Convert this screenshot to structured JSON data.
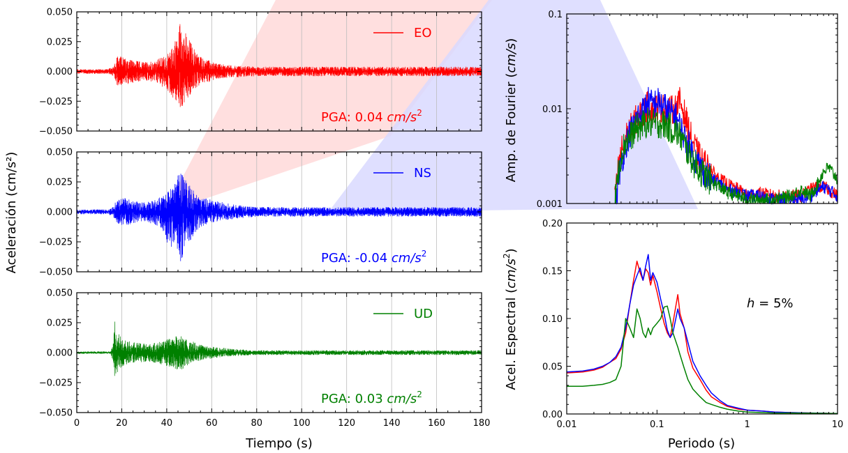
{
  "colors": {
    "EO": "#ff0000",
    "NS": "#0000ff",
    "UD": "#008000",
    "axis": "#000000",
    "grid": "#bdbdbd",
    "watermark_red": "#ffd6d6",
    "watermark_blue": "#d6d6ff"
  },
  "left": {
    "ylabel": "Aceleración (cm/s²)",
    "xlabel": "Tiempo (s)",
    "xticks": [
      "0",
      "20",
      "40",
      "60",
      "80",
      "100",
      "120",
      "140",
      "160",
      "180"
    ],
    "yticks": [
      "0.050",
      "0.025",
      "0.000",
      "−0.025",
      "−0.050"
    ],
    "panels": [
      {
        "legend": "EO",
        "pga_prefix": "PGA: 0.04 ",
        "pga_unit": "cm/s",
        "pga_exp": "2"
      },
      {
        "legend": "NS",
        "pga_prefix": "PGA: -0.04 ",
        "pga_unit": "cm/s",
        "pga_exp": "2"
      },
      {
        "legend": "UD",
        "pga_prefix": "PGA: 0.03 ",
        "pga_unit": "cm/s",
        "pga_exp": "2"
      }
    ]
  },
  "fourier": {
    "ylabel_prefix": "Amp. de Fourier (",
    "ylabel_unit": "cm/s",
    "ylabel_suffix": ")",
    "yticks": [
      "0.1",
      "0.01",
      "0.001"
    ]
  },
  "spectrum": {
    "ylabel_prefix": "Acel. Espectral (",
    "ylabel_unit": "cm/s",
    "ylabel_exp": "2",
    "ylabel_suffix": ")",
    "xlabel": "Periodo (s)",
    "yticks": [
      "0.20",
      "0.15",
      "0.10",
      "0.05",
      "0.00"
    ],
    "xticks": [
      "0.01",
      "0.1",
      "1",
      "10"
    ],
    "damping_h": "h",
    "damping_rest": " = 5%"
  },
  "chart_data": [
    {
      "type": "line",
      "title": "",
      "xlabel": "Tiempo (s)",
      "ylabel": "Aceleración (cm/s²)",
      "xlim": [
        0,
        180
      ],
      "ylim": [
        -0.05,
        0.05
      ],
      "grid": "vertical",
      "series": [
        {
          "name": "EO",
          "color": "#ff0000",
          "pga": 0.04,
          "envelope": {
            "t": [
              0,
              14,
              16,
              18,
              22,
              26,
              30,
              34,
              38,
              40,
              42,
              44,
              46,
              48,
              50,
              52,
              55,
              60,
              65,
              70,
              80,
              100,
              130,
              160,
              180
            ],
            "upper": [
              0.002,
              0.002,
              0.004,
              0.013,
              0.012,
              0.009,
              0.008,
              0.009,
              0.012,
              0.014,
              0.018,
              0.03,
              0.042,
              0.034,
              0.027,
              0.02,
              0.013,
              0.008,
              0.006,
              0.005,
              0.004,
              0.004,
              0.004,
              0.004,
              0.004
            ],
            "lower": [
              -0.002,
              -0.002,
              -0.004,
              -0.012,
              -0.011,
              -0.009,
              -0.008,
              -0.009,
              -0.013,
              -0.016,
              -0.02,
              -0.026,
              -0.033,
              -0.028,
              -0.022,
              -0.016,
              -0.011,
              -0.008,
              -0.006,
              -0.005,
              -0.004,
              -0.004,
              -0.004,
              -0.004,
              -0.004
            ]
          }
        },
        {
          "name": "NS",
          "color": "#0000ff",
          "pga": -0.04,
          "envelope": {
            "t": [
              0,
              14,
              16,
              18,
              22,
              26,
              30,
              34,
              38,
              40,
              42,
              44,
              46,
              48,
              50,
              52,
              55,
              60,
              65,
              70,
              80,
              100,
              130,
              160,
              180
            ],
            "upper": [
              0.002,
              0.002,
              0.004,
              0.011,
              0.012,
              0.009,
              0.008,
              0.01,
              0.013,
              0.016,
              0.02,
              0.028,
              0.035,
              0.03,
              0.024,
              0.018,
              0.013,
              0.01,
              0.008,
              0.006,
              0.004,
              0.004,
              0.004,
              0.004,
              0.004
            ],
            "lower": [
              -0.002,
              -0.002,
              -0.004,
              -0.01,
              -0.012,
              -0.009,
              -0.008,
              -0.01,
              -0.014,
              -0.025,
              -0.03,
              -0.034,
              -0.042,
              -0.033,
              -0.026,
              -0.019,
              -0.013,
              -0.009,
              -0.007,
              -0.006,
              -0.004,
              -0.004,
              -0.004,
              -0.004,
              -0.004
            ]
          }
        },
        {
          "name": "UD",
          "color": "#008000",
          "pga": 0.03,
          "envelope": {
            "t": [
              0,
              15,
              16,
              17,
              18,
              20,
              24,
              28,
              34,
              38,
              42,
              46,
              48,
              52,
              56,
              60,
              65,
              70,
              80,
              100,
              130,
              160,
              180
            ],
            "upper": [
              0.001,
              0.001,
              0.006,
              0.028,
              0.018,
              0.012,
              0.009,
              0.008,
              0.008,
              0.01,
              0.012,
              0.015,
              0.012,
              0.009,
              0.006,
              0.005,
              0.004,
              0.003,
              0.002,
              0.002,
              0.002,
              0.002,
              0.002
            ],
            "lower": [
              -0.001,
              -0.001,
              -0.006,
              -0.025,
              -0.017,
              -0.012,
              -0.009,
              -0.008,
              -0.008,
              -0.01,
              -0.013,
              -0.016,
              -0.012,
              -0.008,
              -0.006,
              -0.005,
              -0.004,
              -0.003,
              -0.002,
              -0.002,
              -0.002,
              -0.002,
              -0.002
            ]
          }
        }
      ]
    },
    {
      "type": "line",
      "title": "",
      "xlabel": "Periodo (s)",
      "ylabel": "Amp. de Fourier (cm/s)",
      "xscale": "log",
      "yscale": "log",
      "xlim": [
        0.01,
        10
      ],
      "ylim": [
        0.001,
        0.1
      ],
      "series": [
        {
          "name": "EO",
          "color": "#ff0000",
          "x": [
            0.034,
            0.037,
            0.04,
            0.045,
            0.05,
            0.06,
            0.07,
            0.08,
            0.09,
            0.1,
            0.12,
            0.14,
            0.16,
            0.18,
            0.2,
            0.23,
            0.26,
            0.3,
            0.35,
            0.4,
            0.5,
            0.6,
            0.8,
            1,
            1.3,
            2,
            3,
            4,
            5,
            6,
            7,
            8,
            10
          ],
          "y": [
            0.001,
            0.0022,
            0.0035,
            0.005,
            0.006,
            0.008,
            0.009,
            0.011,
            0.0095,
            0.0105,
            0.01,
            0.0095,
            0.01,
            0.012,
            0.009,
            0.0055,
            0.004,
            0.003,
            0.0025,
            0.0022,
            0.0018,
            0.0016,
            0.0014,
            0.0012,
            0.0013,
            0.0012,
            0.0012,
            0.0012,
            0.0014,
            0.0015,
            0.0015,
            0.0014,
            0.0012
          ]
        },
        {
          "name": "NS",
          "color": "#0000ff",
          "x": [
            0.035,
            0.038,
            0.042,
            0.046,
            0.05,
            0.06,
            0.07,
            0.08,
            0.09,
            0.1,
            0.12,
            0.14,
            0.16,
            0.18,
            0.2,
            0.23,
            0.26,
            0.3,
            0.35,
            0.4,
            0.5,
            0.6,
            0.8,
            1,
            1.3,
            2,
            3,
            4,
            5,
            6,
            7,
            8,
            10
          ],
          "y": [
            0.001,
            0.002,
            0.0032,
            0.0045,
            0.0055,
            0.008,
            0.0095,
            0.012,
            0.011,
            0.012,
            0.0105,
            0.009,
            0.0085,
            0.0065,
            0.005,
            0.004,
            0.003,
            0.0025,
            0.002,
            0.0018,
            0.0016,
            0.0014,
            0.0013,
            0.0012,
            0.0012,
            0.0011,
            0.0011,
            0.0011,
            0.0012,
            0.0014,
            0.0015,
            0.0014,
            0.0012
          ]
        },
        {
          "name": "UD",
          "color": "#008000",
          "x": [
            0.034,
            0.037,
            0.04,
            0.045,
            0.05,
            0.06,
            0.07,
            0.08,
            0.09,
            0.1,
            0.12,
            0.14,
            0.16,
            0.18,
            0.2,
            0.23,
            0.26,
            0.3,
            0.35,
            0.4,
            0.5,
            0.6,
            0.8,
            1,
            1.3,
            2,
            3,
            4,
            5,
            6,
            7,
            8,
            10
          ],
          "y": [
            0.001,
            0.002,
            0.0033,
            0.0045,
            0.005,
            0.0062,
            0.0068,
            0.0072,
            0.0068,
            0.007,
            0.0068,
            0.0062,
            0.0058,
            0.0052,
            0.0042,
            0.0032,
            0.0026,
            0.0022,
            0.0019,
            0.0017,
            0.0015,
            0.0013,
            0.0012,
            0.0011,
            0.0011,
            0.0011,
            0.0012,
            0.0014,
            0.0012,
            0.0016,
            0.0022,
            0.0024,
            0.0018
          ]
        }
      ]
    },
    {
      "type": "line",
      "title": "",
      "xlabel": "Periodo (s)",
      "ylabel": "Acel. Espectral (cm/s²)",
      "xscale": "log",
      "xlim": [
        0.01,
        10
      ],
      "ylim": [
        0,
        0.2
      ],
      "annotation": "h = 5%",
      "series": [
        {
          "name": "EO",
          "color": "#ff0000",
          "x": [
            0.01,
            0.015,
            0.02,
            0.025,
            0.03,
            0.035,
            0.04,
            0.045,
            0.05,
            0.055,
            0.06,
            0.065,
            0.07,
            0.075,
            0.08,
            0.085,
            0.09,
            0.1,
            0.11,
            0.12,
            0.13,
            0.14,
            0.15,
            0.17,
            0.18,
            0.2,
            0.22,
            0.25,
            0.3,
            0.35,
            0.4,
            0.5,
            0.6,
            0.8,
            1,
            1.5,
            2,
            3,
            5,
            10
          ],
          "y": [
            0.043,
            0.044,
            0.046,
            0.049,
            0.054,
            0.058,
            0.068,
            0.085,
            0.115,
            0.14,
            0.16,
            0.148,
            0.14,
            0.152,
            0.148,
            0.135,
            0.145,
            0.128,
            0.11,
            0.095,
            0.085,
            0.08,
            0.095,
            0.125,
            0.105,
            0.09,
            0.065,
            0.048,
            0.036,
            0.025,
            0.018,
            0.012,
            0.008,
            0.005,
            0.004,
            0.003,
            0.002,
            0.0015,
            0.001,
            0.0005
          ]
        },
        {
          "name": "NS",
          "color": "#0000ff",
          "x": [
            0.01,
            0.015,
            0.02,
            0.025,
            0.03,
            0.035,
            0.04,
            0.045,
            0.05,
            0.055,
            0.06,
            0.065,
            0.07,
            0.075,
            0.08,
            0.085,
            0.09,
            0.1,
            0.11,
            0.12,
            0.13,
            0.14,
            0.15,
            0.17,
            0.18,
            0.2,
            0.22,
            0.25,
            0.3,
            0.35,
            0.4,
            0.5,
            0.6,
            0.8,
            1,
            1.5,
            2,
            3,
            5,
            10
          ],
          "y": [
            0.044,
            0.045,
            0.047,
            0.05,
            0.054,
            0.06,
            0.07,
            0.09,
            0.115,
            0.135,
            0.145,
            0.153,
            0.14,
            0.155,
            0.167,
            0.14,
            0.148,
            0.138,
            0.12,
            0.105,
            0.088,
            0.08,
            0.085,
            0.11,
            0.1,
            0.09,
            0.075,
            0.055,
            0.04,
            0.03,
            0.022,
            0.014,
            0.009,
            0.006,
            0.004,
            0.003,
            0.002,
            0.0015,
            0.001,
            0.0005
          ]
        },
        {
          "name": "UD",
          "color": "#008000",
          "x": [
            0.01,
            0.015,
            0.02,
            0.025,
            0.03,
            0.035,
            0.04,
            0.045,
            0.05,
            0.055,
            0.06,
            0.065,
            0.07,
            0.075,
            0.08,
            0.085,
            0.09,
            0.1,
            0.11,
            0.12,
            0.13,
            0.14,
            0.15,
            0.17,
            0.18,
            0.2,
            0.22,
            0.25,
            0.3,
            0.35,
            0.4,
            0.5,
            0.6,
            0.8,
            1,
            1.5,
            2,
            3,
            5,
            10
          ],
          "y": [
            0.029,
            0.029,
            0.03,
            0.031,
            0.033,
            0.036,
            0.05,
            0.1,
            0.09,
            0.08,
            0.11,
            0.1,
            0.085,
            0.08,
            0.09,
            0.083,
            0.09,
            0.095,
            0.1,
            0.112,
            0.113,
            0.1,
            0.085,
            0.07,
            0.062,
            0.048,
            0.036,
            0.026,
            0.018,
            0.012,
            0.01,
            0.007,
            0.005,
            0.003,
            0.002,
            0.0015,
            0.001,
            0.001,
            0.0008,
            0.0005
          ]
        }
      ]
    }
  ]
}
